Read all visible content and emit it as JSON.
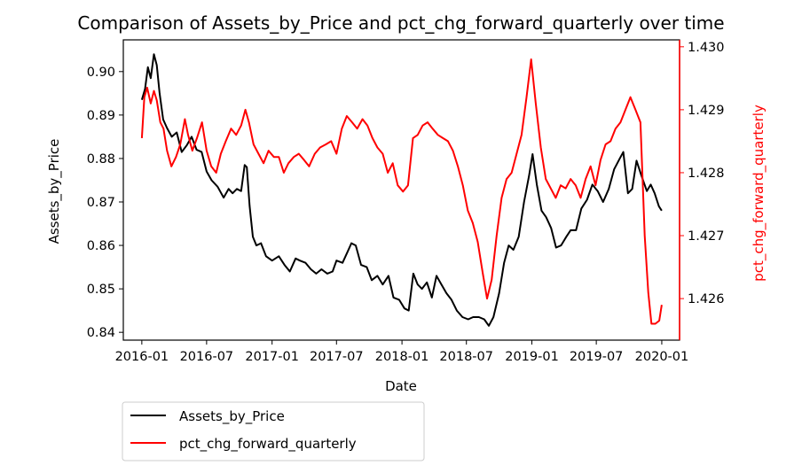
{
  "chart_data": {
    "type": "line",
    "title": "Comparison of Assets_by_Price and pct_chg_forward_quarterly over time",
    "xlabel": "Date",
    "ylabel": "Assets_by_Price",
    "ylabel_right": "pct_chg_forward_quarterly",
    "x_ticks": [
      "2016-01",
      "2016-07",
      "2017-01",
      "2017-07",
      "2018-01",
      "2018-07",
      "2019-01",
      "2019-07",
      "2020-01"
    ],
    "x_range": [
      "2015-11-10",
      "2020-02-20"
    ],
    "ylim_left": [
      0.8382,
      0.9073
    ],
    "ylim_right": [
      1.42534,
      1.43011
    ],
    "yticks_left": [
      "0.84",
      "0.85",
      "0.86",
      "0.87",
      "0.88",
      "0.89",
      "0.90"
    ],
    "yticks_right": [
      "1.426",
      "1.427",
      "1.428",
      "1.429",
      "1.430"
    ],
    "grid": false,
    "legend_position": "below-left",
    "series": [
      {
        "name": "Assets_by_Price",
        "axis": "left",
        "color": "#000000",
        "points": [
          [
            "2016-01-01",
            0.8935
          ],
          [
            "2016-01-10",
            0.896
          ],
          [
            "2016-01-18",
            0.901
          ],
          [
            "2016-01-26",
            0.8985
          ],
          [
            "2016-02-04",
            0.904
          ],
          [
            "2016-02-12",
            0.9015
          ],
          [
            "2016-02-20",
            0.895
          ],
          [
            "2016-03-01",
            0.889
          ],
          [
            "2016-03-12",
            0.887
          ],
          [
            "2016-03-25",
            0.885
          ],
          [
            "2016-04-08",
            0.886
          ],
          [
            "2016-04-22",
            0.8815
          ],
          [
            "2016-05-06",
            0.883
          ],
          [
            "2016-05-20",
            0.885
          ],
          [
            "2016-06-03",
            0.882
          ],
          [
            "2016-06-17",
            0.8815
          ],
          [
            "2016-07-01",
            0.877
          ],
          [
            "2016-07-15",
            0.875
          ],
          [
            "2016-08-01",
            0.8735
          ],
          [
            "2016-08-18",
            0.871
          ],
          [
            "2016-09-01",
            0.873
          ],
          [
            "2016-09-12",
            0.872
          ],
          [
            "2016-09-24",
            0.873
          ],
          [
            "2016-10-06",
            0.8725
          ],
          [
            "2016-10-16",
            0.8785
          ],
          [
            "2016-10-22",
            0.878
          ],
          [
            "2016-10-30",
            0.869
          ],
          [
            "2016-11-08",
            0.862
          ],
          [
            "2016-11-18",
            0.86
          ],
          [
            "2016-12-01",
            0.8605
          ],
          [
            "2016-12-15",
            0.8575
          ],
          [
            "2017-01-01",
            0.8565
          ],
          [
            "2017-01-20",
            0.8575
          ],
          [
            "2017-02-05",
            0.8555
          ],
          [
            "2017-02-20",
            0.854
          ],
          [
            "2017-03-08",
            0.857
          ],
          [
            "2017-03-20",
            0.8565
          ],
          [
            "2017-04-05",
            0.856
          ],
          [
            "2017-04-20",
            0.8545
          ],
          [
            "2017-05-05",
            0.8535
          ],
          [
            "2017-05-20",
            0.8545
          ],
          [
            "2017-06-05",
            0.8535
          ],
          [
            "2017-06-20",
            0.854
          ],
          [
            "2017-07-01",
            0.8565
          ],
          [
            "2017-07-18",
            0.856
          ],
          [
            "2017-08-01",
            0.8585
          ],
          [
            "2017-08-12",
            0.8605
          ],
          [
            "2017-08-24",
            0.86
          ],
          [
            "2017-09-08",
            0.8555
          ],
          [
            "2017-09-24",
            0.855
          ],
          [
            "2017-10-08",
            0.852
          ],
          [
            "2017-10-24",
            0.853
          ],
          [
            "2017-11-08",
            0.851
          ],
          [
            "2017-11-24",
            0.853
          ],
          [
            "2017-12-08",
            0.848
          ],
          [
            "2017-12-24",
            0.8475
          ],
          [
            "2018-01-08",
            0.8455
          ],
          [
            "2018-01-20",
            0.845
          ],
          [
            "2018-02-02",
            0.8535
          ],
          [
            "2018-02-14",
            0.851
          ],
          [
            "2018-02-26",
            0.85
          ],
          [
            "2018-03-12",
            0.8515
          ],
          [
            "2018-03-26",
            0.848
          ],
          [
            "2018-04-08",
            0.853
          ],
          [
            "2018-04-22",
            0.851
          ],
          [
            "2018-05-06",
            0.849
          ],
          [
            "2018-05-20",
            0.8475
          ],
          [
            "2018-06-04",
            0.845
          ],
          [
            "2018-06-20",
            0.8435
          ],
          [
            "2018-07-06",
            0.843
          ],
          [
            "2018-07-20",
            0.8435
          ],
          [
            "2018-08-05",
            0.8435
          ],
          [
            "2018-08-20",
            0.843
          ],
          [
            "2018-09-02",
            0.8415
          ],
          [
            "2018-09-15",
            0.8435
          ],
          [
            "2018-10-01",
            0.849
          ],
          [
            "2018-10-15",
            0.856
          ],
          [
            "2018-10-28",
            0.86
          ],
          [
            "2018-11-10",
            0.859
          ],
          [
            "2018-11-25",
            0.862
          ],
          [
            "2018-12-10",
            0.87
          ],
          [
            "2018-12-24",
            0.876
          ],
          [
            "2019-01-03",
            0.881
          ],
          [
            "2019-01-15",
            0.874
          ],
          [
            "2019-01-28",
            0.868
          ],
          [
            "2019-02-10",
            0.8665
          ],
          [
            "2019-02-24",
            0.864
          ],
          [
            "2019-03-10",
            0.8595
          ],
          [
            "2019-03-24",
            0.86
          ],
          [
            "2019-04-08",
            0.862
          ],
          [
            "2019-04-20",
            0.8635
          ],
          [
            "2019-05-05",
            0.8635
          ],
          [
            "2019-05-20",
            0.8685
          ],
          [
            "2019-06-05",
            0.8705
          ],
          [
            "2019-06-20",
            0.874
          ],
          [
            "2019-07-05",
            0.8725
          ],
          [
            "2019-07-20",
            0.87
          ],
          [
            "2019-08-05",
            0.873
          ],
          [
            "2019-08-20",
            0.8775
          ],
          [
            "2019-09-05",
            0.88
          ],
          [
            "2019-09-15",
            0.8815
          ],
          [
            "2019-09-28",
            0.872
          ],
          [
            "2019-10-10",
            0.873
          ],
          [
            "2019-10-22",
            0.8795
          ],
          [
            "2019-11-05",
            0.876
          ],
          [
            "2019-11-20",
            0.8725
          ],
          [
            "2019-12-01",
            0.874
          ],
          [
            "2019-12-12",
            0.872
          ],
          [
            "2019-12-24",
            0.869
          ],
          [
            "2020-01-01",
            0.868
          ]
        ]
      },
      {
        "name": "pct_chg_forward_quarterly",
        "axis": "right",
        "color": "#ff0000",
        "points": [
          [
            "2016-01-01",
            1.42855
          ],
          [
            "2016-01-08",
            1.4292
          ],
          [
            "2016-01-16",
            1.42935
          ],
          [
            "2016-01-26",
            1.4291
          ],
          [
            "2016-02-04",
            1.4293
          ],
          [
            "2016-02-12",
            1.42915
          ],
          [
            "2016-02-22",
            1.4288
          ],
          [
            "2016-03-02",
            1.4287
          ],
          [
            "2016-03-12",
            1.42835
          ],
          [
            "2016-03-24",
            1.4281
          ],
          [
            "2016-04-06",
            1.42825
          ],
          [
            "2016-04-18",
            1.42845
          ],
          [
            "2016-05-01",
            1.42885
          ],
          [
            "2016-05-10",
            1.4286
          ],
          [
            "2016-05-22",
            1.42835
          ],
          [
            "2016-06-04",
            1.42855
          ],
          [
            "2016-06-18",
            1.4288
          ],
          [
            "2016-07-01",
            1.42835
          ],
          [
            "2016-07-14",
            1.4281
          ],
          [
            "2016-07-28",
            1.428
          ],
          [
            "2016-08-10",
            1.4283
          ],
          [
            "2016-08-24",
            1.4285
          ],
          [
            "2016-09-08",
            1.4287
          ],
          [
            "2016-09-22",
            1.4286
          ],
          [
            "2016-10-06",
            1.42875
          ],
          [
            "2016-10-18",
            1.429
          ],
          [
            "2016-10-28",
            1.4288
          ],
          [
            "2016-11-10",
            1.42845
          ],
          [
            "2016-11-24",
            1.4283
          ],
          [
            "2016-12-08",
            1.42815
          ],
          [
            "2016-12-22",
            1.42835
          ],
          [
            "2017-01-06",
            1.42825
          ],
          [
            "2017-01-20",
            1.42825
          ],
          [
            "2017-02-03",
            1.428
          ],
          [
            "2017-02-16",
            1.42815
          ],
          [
            "2017-03-03",
            1.42825
          ],
          [
            "2017-03-17",
            1.4283
          ],
          [
            "2017-04-01",
            1.4282
          ],
          [
            "2017-04-15",
            1.4281
          ],
          [
            "2017-05-01",
            1.4283
          ],
          [
            "2017-05-16",
            1.4284
          ],
          [
            "2017-06-01",
            1.42845
          ],
          [
            "2017-06-16",
            1.4285
          ],
          [
            "2017-07-01",
            1.4283
          ],
          [
            "2017-07-16",
            1.4287
          ],
          [
            "2017-07-30",
            1.4289
          ],
          [
            "2017-08-14",
            1.4288
          ],
          [
            "2017-08-28",
            1.4287
          ],
          [
            "2017-09-12",
            1.42885
          ],
          [
            "2017-09-26",
            1.42875
          ],
          [
            "2017-10-10",
            1.42855
          ],
          [
            "2017-10-24",
            1.4284
          ],
          [
            "2017-11-08",
            1.4283
          ],
          [
            "2017-11-22",
            1.428
          ],
          [
            "2017-12-06",
            1.42815
          ],
          [
            "2017-12-20",
            1.4278
          ],
          [
            "2018-01-04",
            1.4277
          ],
          [
            "2018-01-18",
            1.4278
          ],
          [
            "2018-02-01",
            1.42855
          ],
          [
            "2018-02-14",
            1.4286
          ],
          [
            "2018-02-28",
            1.42875
          ],
          [
            "2018-03-14",
            1.4288
          ],
          [
            "2018-03-28",
            1.4287
          ],
          [
            "2018-04-12",
            1.4286
          ],
          [
            "2018-04-26",
            1.42855
          ],
          [
            "2018-05-10",
            1.4285
          ],
          [
            "2018-05-24",
            1.42835
          ],
          [
            "2018-06-07",
            1.4281
          ],
          [
            "2018-06-21",
            1.4278
          ],
          [
            "2018-07-05",
            1.4274
          ],
          [
            "2018-07-19",
            1.4272
          ],
          [
            "2018-08-02",
            1.4269
          ],
          [
            "2018-08-16",
            1.4264
          ],
          [
            "2018-08-28",
            1.426
          ],
          [
            "2018-09-10",
            1.4263
          ],
          [
            "2018-09-24",
            1.427
          ],
          [
            "2018-10-08",
            1.4276
          ],
          [
            "2018-10-22",
            1.4279
          ],
          [
            "2018-11-05",
            1.428
          ],
          [
            "2018-11-19",
            1.4283
          ],
          [
            "2018-12-03",
            1.4286
          ],
          [
            "2018-12-17",
            1.4292
          ],
          [
            "2018-12-30",
            1.4298
          ],
          [
            "2019-01-12",
            1.4291
          ],
          [
            "2019-01-26",
            1.4284
          ],
          [
            "2019-02-09",
            1.4279
          ],
          [
            "2019-02-23",
            1.42775
          ],
          [
            "2019-03-09",
            1.4276
          ],
          [
            "2019-03-23",
            1.4278
          ],
          [
            "2019-04-06",
            1.42775
          ],
          [
            "2019-04-20",
            1.4279
          ],
          [
            "2019-05-04",
            1.4278
          ],
          [
            "2019-05-18",
            1.4276
          ],
          [
            "2019-06-01",
            1.4279
          ],
          [
            "2019-06-15",
            1.4281
          ],
          [
            "2019-06-29",
            1.4278
          ],
          [
            "2019-07-13",
            1.4282
          ],
          [
            "2019-07-27",
            1.42845
          ],
          [
            "2019-08-10",
            1.4285
          ],
          [
            "2019-08-24",
            1.4287
          ],
          [
            "2019-09-07",
            1.4288
          ],
          [
            "2019-09-21",
            1.429
          ],
          [
            "2019-10-05",
            1.4292
          ],
          [
            "2019-10-19",
            1.429
          ],
          [
            "2019-11-02",
            1.4288
          ],
          [
            "2019-11-14",
            1.427
          ],
          [
            "2019-11-24",
            1.4261
          ],
          [
            "2019-12-03",
            1.4256
          ],
          [
            "2019-12-14",
            1.4256
          ],
          [
            "2019-12-25",
            1.42565
          ],
          [
            "2020-01-01",
            1.4259
          ]
        ]
      }
    ]
  }
}
